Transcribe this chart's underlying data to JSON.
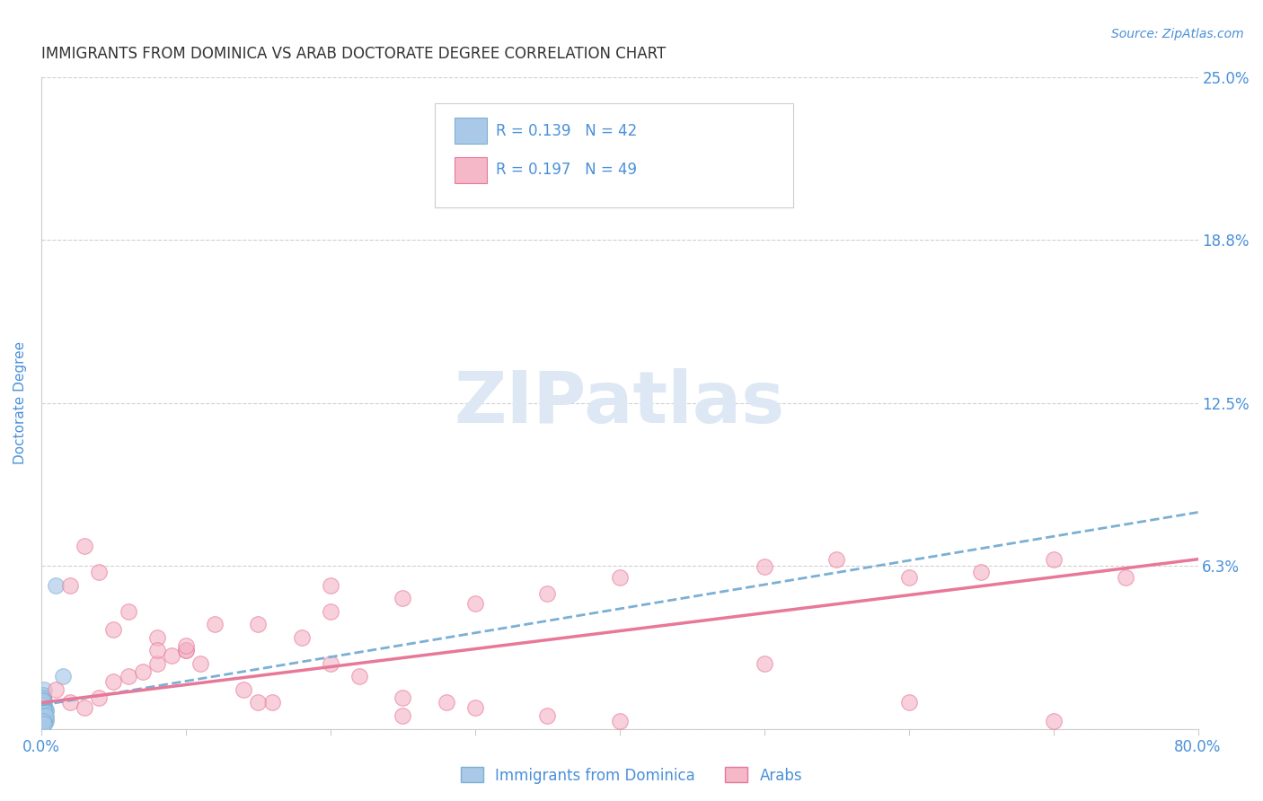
{
  "title": "IMMIGRANTS FROM DOMINICA VS ARAB DOCTORATE DEGREE CORRELATION CHART",
  "source": "Source: ZipAtlas.com",
  "ylabel": "Doctorate Degree",
  "xlim": [
    0.0,
    0.8
  ],
  "ylim": [
    0.0,
    0.25
  ],
  "yticks": [
    0.0,
    0.0625,
    0.125,
    0.1875,
    0.25
  ],
  "ytick_labels": [
    "",
    "6.3%",
    "12.5%",
    "18.8%",
    "25.0%"
  ],
  "xticks": [
    0.0,
    0.1,
    0.2,
    0.3,
    0.4,
    0.5,
    0.6,
    0.7,
    0.8
  ],
  "xtick_labels": [
    "0.0%",
    "",
    "",
    "",
    "",
    "",
    "",
    "",
    "80.0%"
  ],
  "legend_R1": "R = 0.139",
  "legend_N1": "N = 42",
  "legend_R2": "R = 0.197",
  "legend_N2": "N = 49",
  "color_blue": "#aac9e8",
  "color_pink": "#f4b8c8",
  "color_blue_line": "#7bafd4",
  "color_pink_line": "#e87898",
  "color_text": "#4a90d9",
  "watermark": "ZIPatlas",
  "watermark_color": "#dde8f4",
  "background": "#ffffff",
  "dominica_x": [
    0.001,
    0.002,
    0.001,
    0.003,
    0.001,
    0.002,
    0.001,
    0.002,
    0.003,
    0.001,
    0.002,
    0.001,
    0.002,
    0.001,
    0.003,
    0.001,
    0.002,
    0.001,
    0.002,
    0.001,
    0.001,
    0.002,
    0.001,
    0.002,
    0.001,
    0.003,
    0.001,
    0.002,
    0.001,
    0.002,
    0.001,
    0.002,
    0.001,
    0.002,
    0.001,
    0.002,
    0.001,
    0.003,
    0.001,
    0.002,
    0.015,
    0.01
  ],
  "dominica_y": [
    0.01,
    0.005,
    0.008,
    0.003,
    0.012,
    0.015,
    0.007,
    0.009,
    0.004,
    0.006,
    0.011,
    0.013,
    0.002,
    0.009,
    0.007,
    0.01,
    0.004,
    0.008,
    0.005,
    0.003,
    0.011,
    0.006,
    0.012,
    0.008,
    0.004,
    0.007,
    0.009,
    0.005,
    0.011,
    0.003,
    0.008,
    0.006,
    0.01,
    0.004,
    0.009,
    0.007,
    0.011,
    0.005,
    0.003,
    0.002,
    0.02,
    0.055
  ],
  "dominica_trendline": [
    0.009,
    0.083
  ],
  "arab_x": [
    0.01,
    0.02,
    0.03,
    0.04,
    0.05,
    0.06,
    0.07,
    0.08,
    0.09,
    0.1,
    0.11,
    0.12,
    0.14,
    0.16,
    0.18,
    0.2,
    0.22,
    0.25,
    0.28,
    0.3,
    0.02,
    0.04,
    0.06,
    0.08,
    0.1,
    0.15,
    0.2,
    0.25,
    0.3,
    0.35,
    0.4,
    0.5,
    0.55,
    0.6,
    0.65,
    0.7,
    0.75,
    0.05,
    0.1,
    0.2,
    0.35,
    0.5,
    0.6,
    0.7,
    0.03,
    0.08,
    0.15,
    0.25,
    0.4
  ],
  "arab_y": [
    0.015,
    0.01,
    0.008,
    0.012,
    0.018,
    0.02,
    0.022,
    0.025,
    0.028,
    0.03,
    0.025,
    0.04,
    0.015,
    0.01,
    0.035,
    0.045,
    0.02,
    0.012,
    0.01,
    0.008,
    0.055,
    0.06,
    0.045,
    0.035,
    0.03,
    0.04,
    0.055,
    0.05,
    0.048,
    0.052,
    0.058,
    0.062,
    0.065,
    0.058,
    0.06,
    0.065,
    0.058,
    0.038,
    0.032,
    0.025,
    0.005,
    0.025,
    0.01,
    0.003,
    0.07,
    0.03,
    0.01,
    0.005,
    0.003
  ],
  "arab_trendline": [
    0.01,
    0.065
  ]
}
